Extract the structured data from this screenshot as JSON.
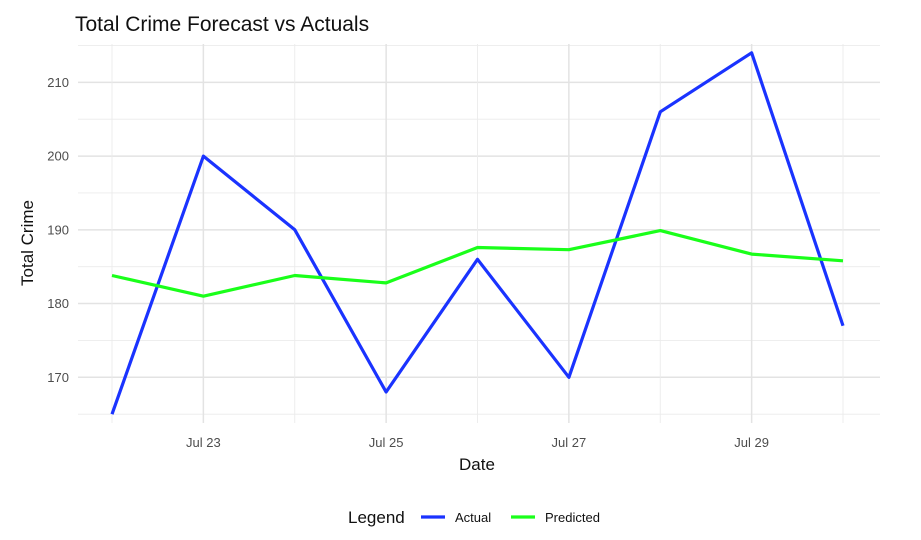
{
  "chart_data": {
    "type": "line",
    "title": "Total Crime Forecast vs Actuals",
    "xlabel": "Date",
    "ylabel": "Total Crime",
    "x": [
      "Jul 22",
      "Jul 23",
      "Jul 24",
      "Jul 25",
      "Jul 26",
      "Jul 27",
      "Jul 28",
      "Jul 29",
      "Jul 30"
    ],
    "x_tick_labels": [
      "Jul 23",
      "Jul 25",
      "Jul 27",
      "Jul 29"
    ],
    "y_ticks": [
      170,
      180,
      190,
      200,
      210
    ],
    "ylim": [
      163.8,
      215.2
    ],
    "series": [
      {
        "name": "Actual",
        "color": "#1a33ff",
        "values": [
          165,
          200,
          190,
          168,
          186,
          170,
          206,
          214,
          177
        ]
      },
      {
        "name": "Predicted",
        "color": "#1aff1a",
        "values": [
          183.8,
          181,
          183.8,
          182.8,
          187.6,
          187.3,
          189.9,
          186.7,
          185.8
        ]
      }
    ],
    "grid": true,
    "legend": {
      "title": "Legend",
      "position": "bottom"
    }
  }
}
